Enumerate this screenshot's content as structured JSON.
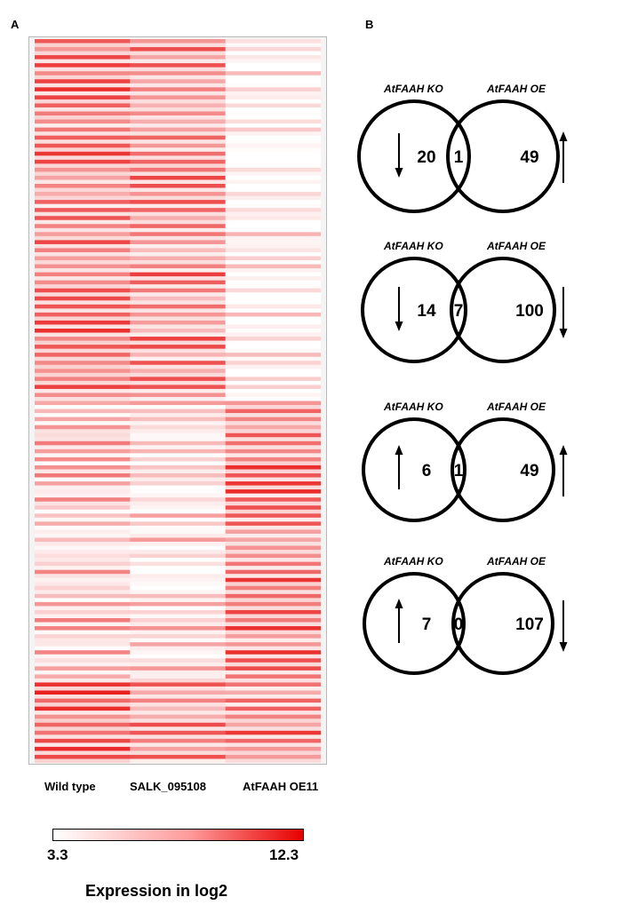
{
  "panels": {
    "a": "A",
    "b": "B"
  },
  "heatmap": {
    "columns": [
      "Wild type",
      "SALK_095108",
      "AtFAAH OE11"
    ],
    "row_count": 180,
    "low_color": "#ffffff",
    "high_color": "#e60000"
  },
  "legend": {
    "min": "3.3",
    "max": "12.3",
    "title": "Expression in log2"
  },
  "venn": [
    {
      "left_label": "AtFAAH KO",
      "right_label": "AtFAAH OE",
      "left_count": "20",
      "overlap_count": "1",
      "right_count": "49",
      "left_arrow": "down",
      "right_arrow": "up"
    },
    {
      "left_label": "AtFAAH KO",
      "right_label": "AtFAAH OE",
      "left_count": "14",
      "overlap_count": "7",
      "right_count": "100",
      "left_arrow": "down",
      "right_arrow": "down"
    },
    {
      "left_label": "AtFAAH KO",
      "right_label": "AtFAAH OE",
      "left_count": "6",
      "overlap_count": "1",
      "right_count": "49",
      "left_arrow": "up",
      "right_arrow": "up"
    },
    {
      "left_label": "AtFAAH KO",
      "right_label": "AtFAAH OE",
      "left_count": "7",
      "overlap_count": "0",
      "right_count": "107",
      "left_arrow": "up",
      "right_arrow": "down"
    }
  ]
}
